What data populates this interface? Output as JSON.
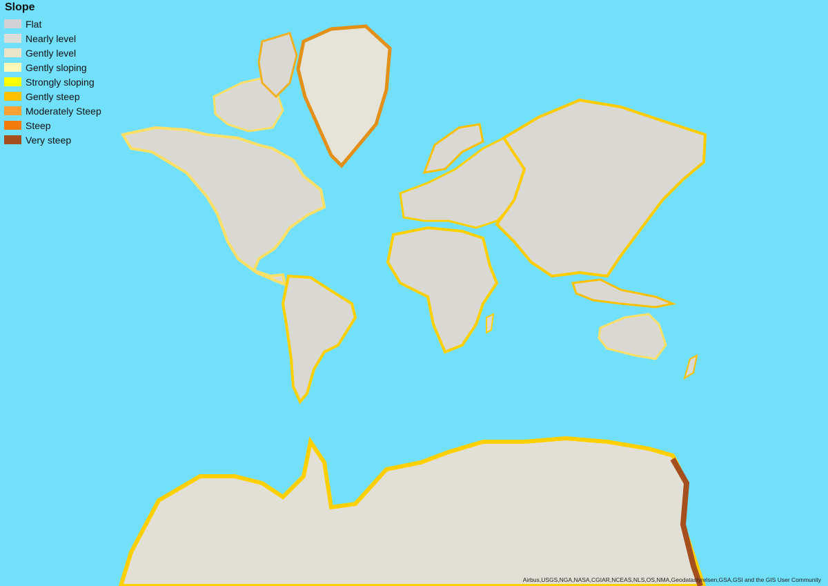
{
  "legend": {
    "title": "Slope",
    "items": [
      {
        "label": "Flat",
        "color": "#d2d2d6"
      },
      {
        "label": "Nearly level",
        "color": "#dcdcd8"
      },
      {
        "label": "Gently level",
        "color": "#ece4c8"
      },
      {
        "label": "Gently sloping",
        "color": "#fff8b8"
      },
      {
        "label": "Strongly sloping",
        "color": "#ffff00"
      },
      {
        "label": "Gently steep",
        "color": "#ffc000"
      },
      {
        "label": "Moderately Steep",
        "color": "#ffa032"
      },
      {
        "label": "Steep",
        "color": "#f47a0a"
      },
      {
        "label": "Very steep",
        "color": "#a54e1e"
      }
    ]
  },
  "attribution": "Airbus,USGS,NGA,NASA,CGIAR,NCEAS,NLS,OS,NMA,Geodatastyrelsen,GSA,GSI and the GIS User Community",
  "colors": {
    "ocean": "#72e0fa",
    "land": "#d9d8d2",
    "coast": "#fff2a0",
    "mountain": "#ffcc00",
    "steep": "#f08010",
    "verysteep": "#a54e1e"
  }
}
